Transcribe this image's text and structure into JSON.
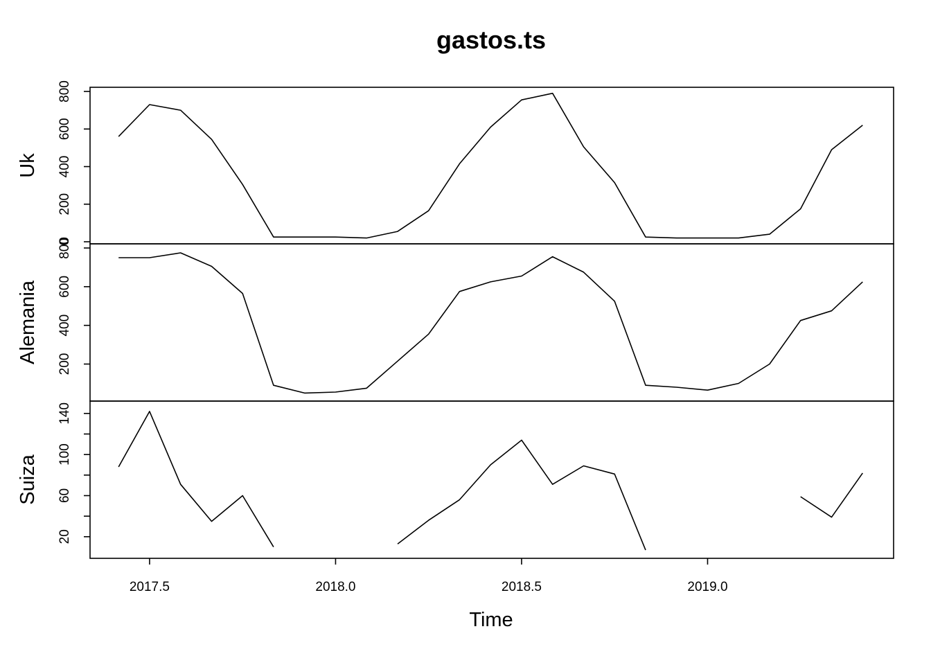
{
  "chart_data": {
    "type": "line",
    "title": "gastos.ts",
    "xlabel": "Time",
    "x_ticks": [
      2017.5,
      2018.0,
      2018.5,
      2019.0
    ],
    "x_tick_labels": [
      "2017.5",
      "2018.0",
      "2018.5",
      "2019.0"
    ],
    "xlim": [
      2017.34,
      2019.5
    ],
    "x": [
      2017.4167,
      2017.5,
      2017.5833,
      2017.6667,
      2017.75,
      2017.8333,
      2017.9167,
      2018.0,
      2018.0833,
      2018.1667,
      2018.25,
      2018.3333,
      2018.4167,
      2018.5,
      2018.5833,
      2018.6667,
      2018.75,
      2018.8333,
      2018.9167,
      2019.0,
      2019.0833,
      2019.1667,
      2019.25,
      2019.3333,
      2019.4167
    ],
    "panels": [
      {
        "name": "Uk",
        "ylim": [
          0,
          800
        ],
        "y_ticks": [
          0,
          200,
          400,
          600,
          800
        ],
        "y_tick_labels": [
          "0",
          "200",
          "400",
          "600",
          "800"
        ],
        "values": [
          560,
          730,
          700,
          545,
          305,
          25,
          25,
          25,
          20,
          55,
          165,
          415,
          610,
          755,
          790,
          505,
          315,
          25,
          20,
          20,
          20,
          40,
          175,
          490,
          620
        ]
      },
      {
        "name": "Alemania",
        "ylim": [
          30,
          800
        ],
        "y_ticks": [
          200,
          400,
          600,
          800
        ],
        "y_tick_labels": [
          "200",
          "400",
          "600",
          "800"
        ],
        "values": [
          750,
          750,
          775,
          705,
          565,
          90,
          50,
          55,
          75,
          215,
          355,
          575,
          625,
          655,
          755,
          675,
          525,
          90,
          80,
          65,
          100,
          200,
          425,
          475,
          625
        ]
      },
      {
        "name": "Suiza",
        "ylim": [
          3,
          148
        ],
        "y_ticks": [
          20,
          40,
          60,
          80,
          100,
          120,
          140
        ],
        "y_tick_labels": [
          "20",
          "",
          "60",
          "",
          "100",
          "",
          "140"
        ],
        "values": [
          88,
          142,
          71,
          35,
          60,
          10,
          null,
          null,
          null,
          13,
          36,
          56,
          90,
          114,
          71,
          89,
          81,
          7,
          null,
          null,
          null,
          null,
          59,
          39,
          82
        ]
      }
    ]
  }
}
